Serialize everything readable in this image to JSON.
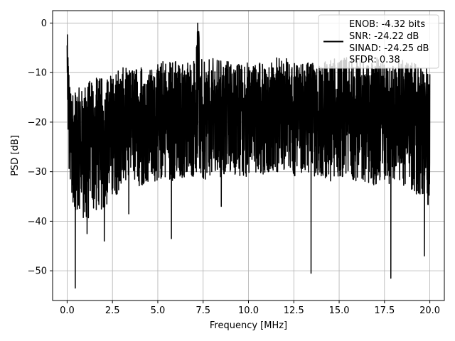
{
  "chart_data": {
    "type": "line",
    "title": "",
    "xlabel": "Frequency [MHz]",
    "ylabel": "PSD [dB]",
    "xlim": [
      -0.8,
      20.8
    ],
    "ylim": [
      -56,
      2.5
    ],
    "xticks": [
      0.0,
      2.5,
      5.0,
      7.5,
      10.0,
      12.5,
      15.0,
      17.5,
      20.0
    ],
    "xtick_labels": [
      "0.0",
      "2.5",
      "5.0",
      "7.5",
      "10.0",
      "12.5",
      "15.0",
      "17.5",
      "20.0"
    ],
    "yticks": [
      0,
      -10,
      -20,
      -30,
      -40,
      -50
    ],
    "ytick_labels": [
      "0",
      "−10",
      "−20",
      "−30",
      "−40",
      "−50"
    ],
    "grid": true,
    "legend": {
      "placement": "top-right",
      "entries": [
        "ENOB: -4.32 bits",
        "SNR: -24.22 dB",
        "SINAD: -24.25 dB",
        "SFDR: 0.38"
      ]
    },
    "series": [
      {
        "color": "#000000",
        "x": [
          0.0,
          0.05,
          0.1,
          0.2,
          0.3,
          0.4,
          0.5,
          0.7,
          1.0,
          1.1,
          1.5,
          2.0,
          2.5,
          3.0,
          3.5,
          4.0,
          4.5,
          5.0,
          5.5,
          5.8,
          6.0,
          6.5,
          7.0,
          7.2,
          7.5,
          8.0,
          8.5,
          9.0,
          9.5,
          10.0,
          10.5,
          11.0,
          11.5,
          12.0,
          12.5,
          13.0,
          13.5,
          14.0,
          14.5,
          15.0,
          15.5,
          16.0,
          16.5,
          17.0,
          17.5,
          17.85,
          18.0,
          18.5,
          19.0,
          19.5,
          19.8,
          20.0
        ],
        "peak": [
          -1,
          -5,
          -9,
          -14,
          -14,
          -14,
          -13,
          -13,
          -12,
          -12,
          -11,
          -11,
          -10,
          -9,
          -9,
          -8,
          -9,
          -8,
          -7,
          -7,
          -7,
          -8,
          -7,
          0,
          -8,
          -7,
          -7,
          -8,
          -8,
          -7,
          -8,
          -8,
          -7,
          -7,
          -8,
          -8,
          -8,
          -8,
          -7,
          -7,
          -7,
          -7,
          -8,
          -7,
          -7,
          -8,
          -8,
          -7,
          -8,
          -8,
          -9,
          -10
        ],
        "floor": [
          -18,
          -25,
          -30,
          -34,
          -36,
          -37,
          -38,
          -39,
          -42,
          -40,
          -38,
          -38,
          -35,
          -34,
          -33,
          -33,
          -32,
          -32,
          -31,
          -32,
          -32,
          -31,
          -31,
          -30,
          -32,
          -31,
          -31,
          -30,
          -31,
          -31,
          -30,
          -31,
          -30,
          -30,
          -31,
          -30,
          -31,
          -31,
          -32,
          -31,
          -31,
          -32,
          -32,
          -33,
          -32,
          -33,
          -32,
          -33,
          -34,
          -35,
          -37,
          -38
        ],
        "dips": [
          {
            "x": 0.45,
            "y": -53.5
          },
          {
            "x": 1.1,
            "y": -42.5
          },
          {
            "x": 2.05,
            "y": -44
          },
          {
            "x": 3.4,
            "y": -38.5
          },
          {
            "x": 5.75,
            "y": -43.5
          },
          {
            "x": 8.5,
            "y": -37
          },
          {
            "x": 13.45,
            "y": -50.5
          },
          {
            "x": 17.85,
            "y": -51.5
          },
          {
            "x": 19.7,
            "y": -47
          }
        ]
      }
    ]
  }
}
